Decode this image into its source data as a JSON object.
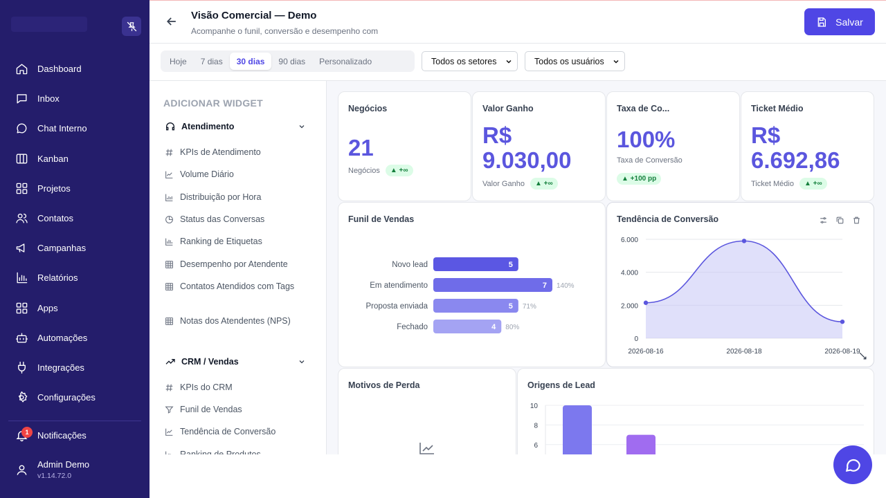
{
  "header": {
    "title": "Visão Comercial — Demo",
    "subtitle": "Acompanhe o funil, conversão e desempenho com",
    "save_label": "Salvar"
  },
  "sidebar": {
    "items": [
      {
        "label": "Dashboard",
        "icon": "home-icon"
      },
      {
        "label": "Inbox",
        "icon": "inbox-icon"
      },
      {
        "label": "Chat Interno",
        "icon": "chat-icon"
      },
      {
        "label": "Kanban",
        "icon": "kanban-icon"
      },
      {
        "label": "Projetos",
        "icon": "projects-icon"
      },
      {
        "label": "Contatos",
        "icon": "contacts-icon"
      },
      {
        "label": "Campanhas",
        "icon": "megaphone-icon"
      },
      {
        "label": "Relatórios",
        "icon": "reports-icon"
      },
      {
        "label": "Apps",
        "icon": "apps-icon"
      },
      {
        "label": "Automações",
        "icon": "bot-icon"
      },
      {
        "label": "Integrações",
        "icon": "plug-icon"
      },
      {
        "label": "Configurações",
        "icon": "gear-icon"
      }
    ],
    "notifications": {
      "label": "Notificações",
      "count": "1"
    },
    "user": {
      "name": "Admin Demo",
      "version": "v1.14.72.0"
    }
  },
  "filters": {
    "periods": [
      "Hoje",
      "7 dias",
      "30 dias",
      "90 dias",
      "Personalizado"
    ],
    "active_period": "30 dias",
    "sector_select": "Todos os setores",
    "user_select": "Todos os usuários"
  },
  "widgets": {
    "heading": "ADICIONAR WIDGET",
    "categories": [
      {
        "label": "Atendimento",
        "items": [
          "KPIs de Atendimento",
          "Volume Diário",
          "Distribuição por Hora",
          "Status das Conversas",
          "Ranking de Etiquetas",
          "Desempenho por Atendente",
          "Contatos Atendidos com Tags",
          "Notas dos Atendentes (NPS)"
        ]
      },
      {
        "label": "CRM / Vendas",
        "items": [
          "KPIs do CRM",
          "Funil de Vendas",
          "Tendência de Conversão",
          "Ranking de Produtos"
        ]
      }
    ]
  },
  "kpis": [
    {
      "title": "Negócios",
      "value": "21",
      "sub": "Negócios",
      "badge": "▲ +∞"
    },
    {
      "title": "Valor Ganho",
      "value_line1": "R$",
      "value_line2": "9.030,00",
      "sub": "Valor Ganho",
      "badge": "▲ +∞"
    },
    {
      "title": "Taxa de Co...",
      "value": "100%",
      "sub": "Taxa de Conversão",
      "badge": "▲ +100 pp"
    },
    {
      "title": "Ticket Médio",
      "value_line1": "R$",
      "value_line2": "6.692,86",
      "sub": "Ticket Médio",
      "badge": "▲ +∞"
    }
  ],
  "panels": {
    "funnel_title": "Funil de Vendas",
    "trend_title": "Tendência de Conversão",
    "loss_title": "Motivos de Perda",
    "origins_title": "Origens de Lead"
  },
  "chart_data": [
    {
      "type": "bar",
      "title": "Funil de Vendas",
      "orientation": "horizontal",
      "categories": [
        "Novo lead",
        "Em atendimento",
        "Proposta enviada",
        "Fechado"
      ],
      "values": [
        5,
        7,
        5,
        4
      ],
      "conversion_labels": [
        "",
        "140%",
        "71%",
        "80%"
      ],
      "colors": [
        "#5b57e3",
        "#6f6ce9",
        "#8a88ef",
        "#a4a3f3"
      ]
    },
    {
      "type": "area",
      "title": "Tendência de Conversão",
      "x": [
        "2026-08-16",
        "2026-08-18",
        "2026-08-19"
      ],
      "x_points": [
        0,
        2,
        4
      ],
      "values": [
        2150,
        5900,
        1000
      ],
      "ylim": [
        0,
        6000
      ],
      "yticks": [
        "0",
        "2.000",
        "4.000",
        "6.000"
      ],
      "grid": true,
      "color": "#5b56de"
    },
    {
      "type": "bar",
      "title": "Origens de Lead",
      "values": [
        10,
        7
      ],
      "ylim": [
        0,
        10
      ],
      "yticks": [
        "6",
        "8",
        "10"
      ],
      "colors": [
        "#7c78ee",
        "#a06cf0"
      ],
      "grid": true
    }
  ]
}
